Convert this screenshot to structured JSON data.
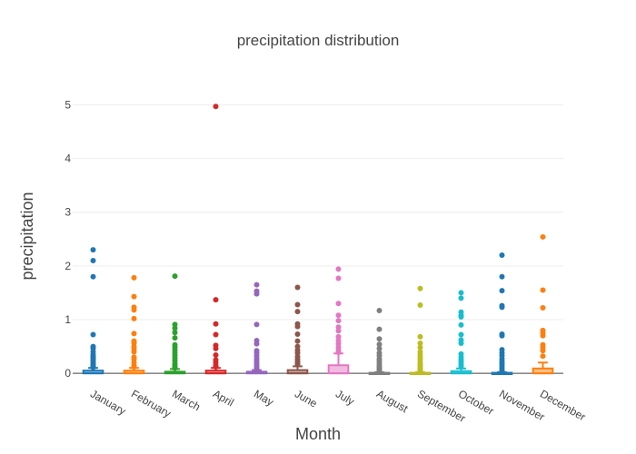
{
  "chart_data": {
    "type": "box",
    "title": "precipitation distribution",
    "xlabel": "Month",
    "ylabel": "precipitation",
    "ylim": [
      -0.15,
      5.6
    ],
    "yticks": [
      0,
      1,
      2,
      3,
      4,
      5
    ],
    "grid": true,
    "legend": "none",
    "categories": [
      "January",
      "February",
      "March",
      "April",
      "May",
      "June",
      "July",
      "August",
      "September",
      "October",
      "November",
      "December"
    ],
    "colors": [
      "#1f77b4",
      "#ff7f0e",
      "#2ca02c",
      "#d62728",
      "#9467bd",
      "#8c564b",
      "#e377c2",
      "#7f7f7f",
      "#bcbd22",
      "#17becf",
      "#1f77b4",
      "#ff7f0e"
    ],
    "boxes": [
      {
        "q1": 0,
        "median": 0,
        "q3": 0.05,
        "upper_fence": 0.1,
        "outliers": [
          2.3,
          2.1,
          1.8,
          0.72,
          0.5,
          0.46,
          0.4,
          0.35,
          0.32,
          0.29,
          0.26,
          0.23,
          0.2,
          0.17,
          0.15,
          0.13,
          0.11
        ]
      },
      {
        "q1": 0,
        "median": 0,
        "q3": 0.05,
        "upper_fence": 0.1,
        "outliers": [
          1.78,
          1.43,
          1.23,
          1.18,
          1.02,
          0.74,
          0.6,
          0.56,
          0.5,
          0.45,
          0.4,
          0.3,
          0.26,
          0.2,
          0.15,
          0.12
        ]
      },
      {
        "q1": 0,
        "median": 0,
        "q3": 0.03,
        "upper_fence": 0.08,
        "outliers": [
          1.81,
          0.91,
          0.84,
          0.76,
          0.66,
          0.53,
          0.48,
          0.43,
          0.38,
          0.33,
          0.28,
          0.23,
          0.18,
          0.15,
          0.12,
          0.1
        ]
      },
      {
        "q1": 0,
        "median": 0,
        "q3": 0.05,
        "upper_fence": 0.1,
        "outliers": [
          4.97,
          1.37,
          0.92,
          0.72,
          0.52,
          0.46,
          0.34,
          0.25,
          0.2,
          0.15,
          0.12
        ]
      },
      {
        "q1": 0,
        "median": 0,
        "q3": 0.03,
        "upper_fence": 0.06,
        "outliers": [
          1.65,
          1.53,
          1.48,
          0.91,
          0.61,
          0.55,
          0.42,
          0.38,
          0.33,
          0.28,
          0.24,
          0.2,
          0.16,
          0.13,
          0.1,
          0.08
        ]
      },
      {
        "q1": 0,
        "median": 0,
        "q3": 0.06,
        "upper_fence": 0.13,
        "outliers": [
          1.6,
          1.28,
          1.15,
          0.92,
          0.87,
          0.73,
          0.6,
          0.5,
          0.43,
          0.38,
          0.31,
          0.26,
          0.22,
          0.19,
          0.16
        ]
      },
      {
        "q1": 0,
        "median": 0,
        "q3": 0.15,
        "upper_fence": 0.37,
        "outliers": [
          1.94,
          1.77,
          1.3,
          1.08,
          0.98,
          0.86,
          0.79,
          0.68,
          0.61,
          0.55,
          0.48,
          0.42,
          0.39
        ]
      },
      {
        "q1": 0,
        "median": 0,
        "q3": 0.01,
        "upper_fence": 0.02,
        "outliers": [
          1.17,
          0.82,
          0.64,
          0.54,
          0.46,
          0.38,
          0.33,
          0.27,
          0.23,
          0.19,
          0.15,
          0.12,
          0.09,
          0.07,
          0.05,
          0.04
        ]
      },
      {
        "q1": 0,
        "median": 0,
        "q3": 0.01,
        "upper_fence": 0.02,
        "outliers": [
          1.58,
          1.27,
          0.68,
          0.56,
          0.48,
          0.4,
          0.35,
          0.3,
          0.26,
          0.21,
          0.17,
          0.14,
          0.11,
          0.08,
          0.05,
          0.04
        ]
      },
      {
        "q1": 0,
        "median": 0,
        "q3": 0.04,
        "upper_fence": 0.09,
        "outliers": [
          1.5,
          1.4,
          1.14,
          1.08,
          1.05,
          0.9,
          0.72,
          0.62,
          0.56,
          0.36,
          0.3,
          0.25,
          0.21,
          0.17,
          0.13
        ]
      },
      {
        "q1": 0,
        "median": 0,
        "q3": 0.01,
        "upper_fence": 0.02,
        "outliers": [
          2.2,
          1.8,
          1.54,
          1.26,
          1.23,
          0.73,
          0.7,
          0.44,
          0.38,
          0.33,
          0.27,
          0.22,
          0.18,
          0.14,
          0.1,
          0.06,
          0.04
        ]
      },
      {
        "q1": 0,
        "median": 0,
        "q3": 0.09,
        "upper_fence": 0.2,
        "outliers": [
          2.54,
          1.55,
          1.22,
          0.8,
          0.75,
          0.7,
          0.53,
          0.48,
          0.42,
          0.32
        ]
      }
    ]
  }
}
